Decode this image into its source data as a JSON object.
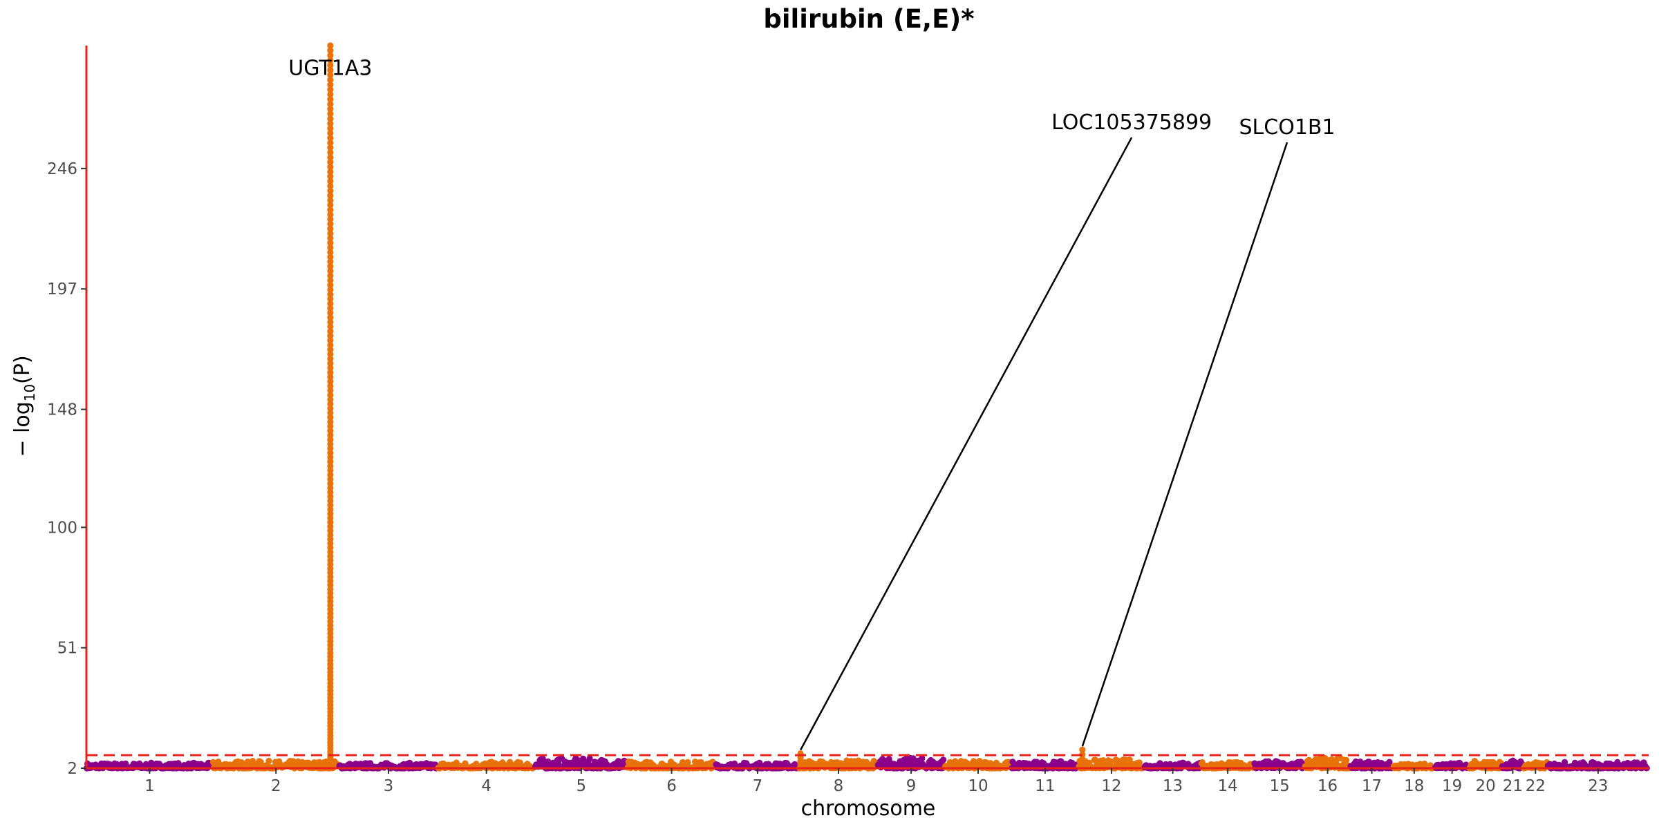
{
  "chart_data": {
    "type": "scatter",
    "title": "bilirubin (E,E)*",
    "xlabel": "chromosome",
    "ylabel": "−log10(P)",
    "ylabel_main": "− log",
    "ylabel_sub": "10",
    "ylabel_tail": "(P)",
    "ylim": [
      2,
      296
    ],
    "yticks": [
      2,
      51,
      100,
      148,
      197,
      246
    ],
    "significance_threshold": 7.3,
    "series_colors": {
      "odd": "#8B008B",
      "even": "#E8730A"
    },
    "axis_color": "#E8221A",
    "threshold_color": "#E8221A",
    "chromosomes": [
      {
        "label": "1",
        "start": 0.0,
        "end": 1.0,
        "max": 4.2
      },
      {
        "label": "2",
        "start": 1.0,
        "end": 2.0,
        "max": 5.0,
        "peak": {
          "pos": 1.93,
          "max": 296
        }
      },
      {
        "label": "3",
        "start": 2.0,
        "end": 2.78,
        "max": 4.2
      },
      {
        "label": "4",
        "start": 2.78,
        "end": 3.55,
        "max": 4.6
      },
      {
        "label": "5",
        "start": 3.55,
        "end": 4.28,
        "max": 6.0
      },
      {
        "label": "6",
        "start": 4.28,
        "end": 4.98,
        "max": 4.8
      },
      {
        "label": "7",
        "start": 4.98,
        "end": 5.64,
        "max": 4.3
      },
      {
        "label": "8",
        "start": 5.64,
        "end": 6.26,
        "max": 5.2,
        "peak": {
          "pos": 5.65,
          "max": 8.0
        }
      },
      {
        "label": "9",
        "start": 6.26,
        "end": 6.79,
        "max": 6.2
      },
      {
        "label": "10",
        "start": 6.79,
        "end": 7.32,
        "max": 5.0
      },
      {
        "label": "11",
        "start": 7.32,
        "end": 7.85,
        "max": 4.8
      },
      {
        "label": "12",
        "start": 7.85,
        "end": 8.37,
        "max": 5.6,
        "peak": {
          "pos": 7.88,
          "max": 9.5
        }
      },
      {
        "label": "13",
        "start": 8.37,
        "end": 8.82,
        "max": 4.4
      },
      {
        "label": "14",
        "start": 8.82,
        "end": 9.24,
        "max": 4.5
      },
      {
        "label": "15",
        "start": 9.24,
        "end": 9.64,
        "max": 5.0
      },
      {
        "label": "16",
        "start": 9.64,
        "end": 10.0,
        "max": 6.5
      },
      {
        "label": "17",
        "start": 10.0,
        "end": 10.34,
        "max": 4.7
      },
      {
        "label": "18",
        "start": 10.34,
        "end": 10.67,
        "max": 4.0
      },
      {
        "label": "19",
        "start": 10.67,
        "end": 10.94,
        "max": 4.3
      },
      {
        "label": "20",
        "start": 10.94,
        "end": 11.2,
        "max": 5.0
      },
      {
        "label": "21",
        "start": 11.2,
        "end": 11.37,
        "max": 5.5
      },
      {
        "label": "22",
        "start": 11.37,
        "end": 11.56,
        "max": 4.5
      },
      {
        "label": "23",
        "start": 11.56,
        "end": 12.36,
        "max": 4.6
      }
    ],
    "annotations": [
      {
        "label": "UGT1A3",
        "x": 1.93,
        "y": 296,
        "label_y": 284,
        "label_x": 1.93,
        "leader": false
      },
      {
        "label": "LOC105375899",
        "x": 5.65,
        "y": 8.0,
        "label_y": 262,
        "label_x": 8.27,
        "leader": true
      },
      {
        "label": "SLCO1B1",
        "x": 7.88,
        "y": 9.5,
        "label_y": 260,
        "label_x": 9.5,
        "leader": true
      }
    ]
  }
}
